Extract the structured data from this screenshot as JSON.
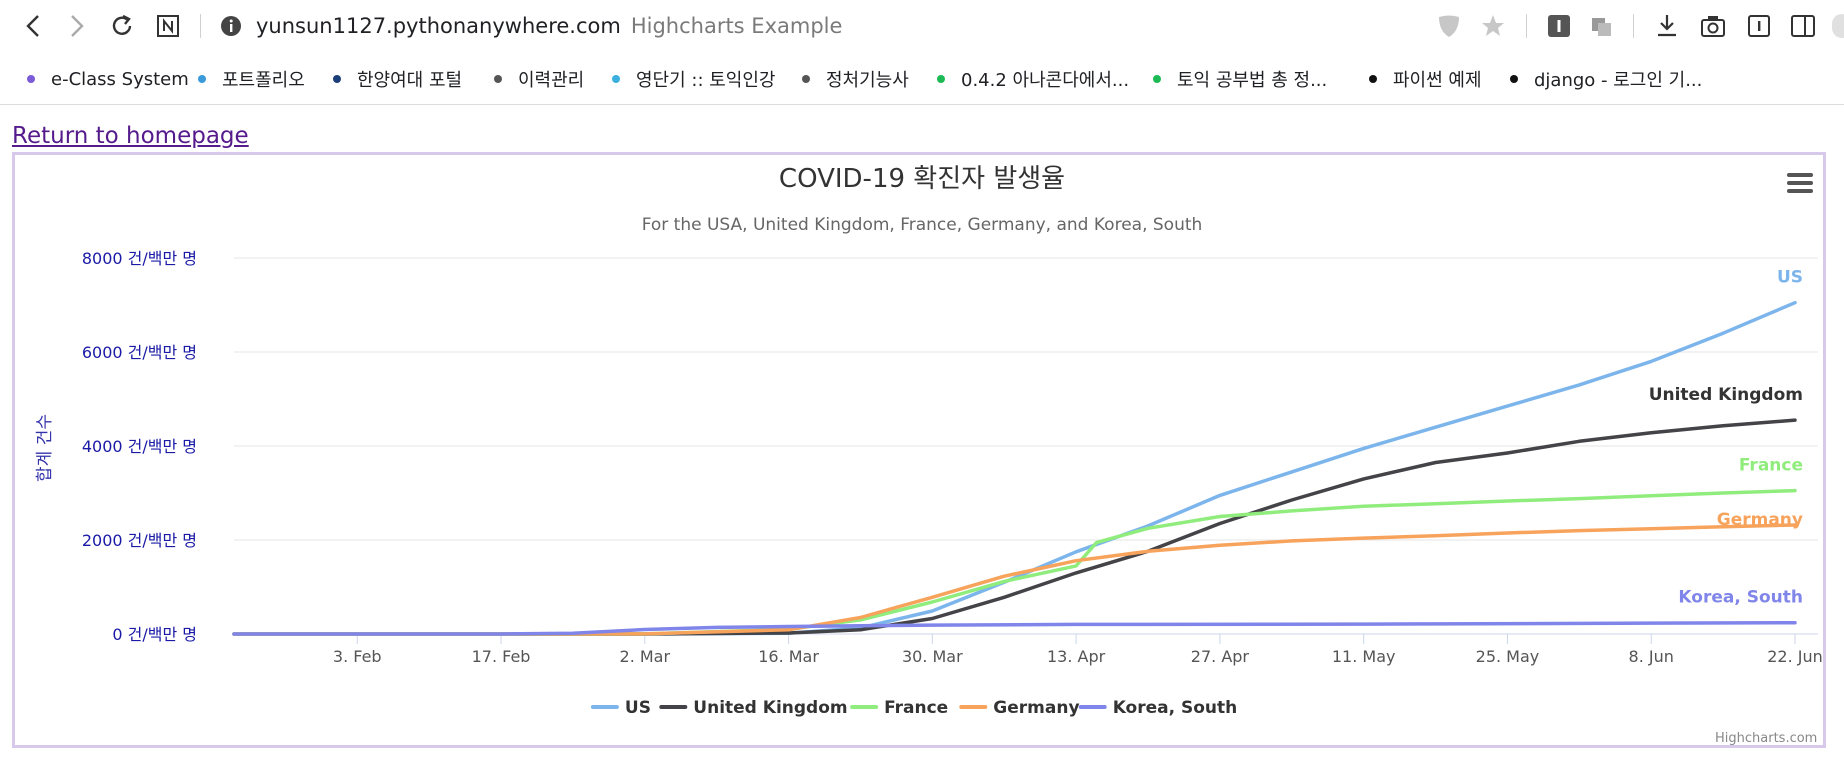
{
  "browser": {
    "url_host": "yunsun1127.pythonanywhere.com",
    "page_title": "Highcharts Example",
    "icons": [
      "back-icon",
      "forward-icon",
      "reload-icon",
      "extension-n-icon",
      "site-info-icon",
      "shield-icon",
      "star-icon",
      "extension-i-icon",
      "puzzle-icon",
      "download-icon",
      "camera-icon",
      "reader-icon",
      "sidebar-icon"
    ]
  },
  "bookmarks": [
    {
      "label": "e-Class System",
      "color": "#7b5bd6"
    },
    {
      "label": "포트폴리오",
      "color": "#3b9ad9"
    },
    {
      "label": "한양여대 포털",
      "color": "#1c3f7a"
    },
    {
      "label": "이력관리",
      "color": "#555555"
    },
    {
      "label": "영단기 :: 토익인강",
      "color": "#3ab0e0"
    },
    {
      "label": "정처기능사",
      "color": "#555555"
    },
    {
      "label": "0.4.2 아나콘다에서...",
      "color": "#1db954"
    },
    {
      "label": "토익 공부법 총 정...",
      "color": "#1db954"
    },
    {
      "label": "파이썬 예제",
      "color": "#111111"
    },
    {
      "label": "django - 로그인 기...",
      "color": "#111111"
    }
  ],
  "page": {
    "return_link": "Return to homepage",
    "credits": "Highcharts.com"
  },
  "chart_data": {
    "type": "line",
    "title": "COVID-19 확진자 발생율",
    "subtitle": "For the USA, United Kingdom, France, Germany, and Korea, South",
    "ylabel": "합계 건수",
    "ytick_suffix": " 건/백만 명",
    "yticks": [
      0,
      2000,
      4000,
      6000,
      8000
    ],
    "ylim": [
      0,
      8000
    ],
    "xlim": [
      "2020-01-22",
      "2020-06-22"
    ],
    "xticks": [
      {
        "date": "2020-02-03",
        "label": "3. Feb"
      },
      {
        "date": "2020-02-17",
        "label": "17. Feb"
      },
      {
        "date": "2020-03-02",
        "label": "2. Mar"
      },
      {
        "date": "2020-03-16",
        "label": "16. Mar"
      },
      {
        "date": "2020-03-30",
        "label": "30. Mar"
      },
      {
        "date": "2020-04-13",
        "label": "13. Apr"
      },
      {
        "date": "2020-04-27",
        "label": "27. Apr"
      },
      {
        "date": "2020-05-11",
        "label": "11. May"
      },
      {
        "date": "2020-05-25",
        "label": "25. May"
      },
      {
        "date": "2020-06-08",
        "label": "8. Jun"
      },
      {
        "date": "2020-06-22",
        "label": "22. Jun"
      }
    ],
    "legend": "bottom-center",
    "grid": true,
    "series": [
      {
        "name": "US",
        "color": "#7cb5ec",
        "points": [
          [
            "2020-01-22",
            0
          ],
          [
            "2020-02-17",
            0
          ],
          [
            "2020-03-02",
            1
          ],
          [
            "2020-03-16",
            14
          ],
          [
            "2020-03-23",
            130
          ],
          [
            "2020-03-30",
            490
          ],
          [
            "2020-04-06",
            1100
          ],
          [
            "2020-04-13",
            1750
          ],
          [
            "2020-04-20",
            2300
          ],
          [
            "2020-04-27",
            2950
          ],
          [
            "2020-05-04",
            3450
          ],
          [
            "2020-05-11",
            3950
          ],
          [
            "2020-05-18",
            4400
          ],
          [
            "2020-05-25",
            4850
          ],
          [
            "2020-06-01",
            5300
          ],
          [
            "2020-06-08",
            5800
          ],
          [
            "2020-06-15",
            6400
          ],
          [
            "2020-06-22",
            7050
          ]
        ]
      },
      {
        "name": "United Kingdom",
        "color": "#434348",
        "points": [
          [
            "2020-01-22",
            0
          ],
          [
            "2020-02-17",
            0
          ],
          [
            "2020-03-02",
            1
          ],
          [
            "2020-03-16",
            22
          ],
          [
            "2020-03-23",
            90
          ],
          [
            "2020-03-30",
            330
          ],
          [
            "2020-04-06",
            780
          ],
          [
            "2020-04-13",
            1300
          ],
          [
            "2020-04-20",
            1760
          ],
          [
            "2020-04-27",
            2350
          ],
          [
            "2020-05-04",
            2850
          ],
          [
            "2020-05-11",
            3300
          ],
          [
            "2020-05-18",
            3650
          ],
          [
            "2020-05-25",
            3850
          ],
          [
            "2020-06-01",
            4100
          ],
          [
            "2020-06-08",
            4280
          ],
          [
            "2020-06-15",
            4430
          ],
          [
            "2020-06-22",
            4550
          ]
        ]
      },
      {
        "name": "France",
        "color": "#90ed7d",
        "points": [
          [
            "2020-01-22",
            0
          ],
          [
            "2020-02-17",
            0
          ],
          [
            "2020-03-02",
            3
          ],
          [
            "2020-03-16",
            100
          ],
          [
            "2020-03-23",
            300
          ],
          [
            "2020-03-30",
            680
          ],
          [
            "2020-04-06",
            1120
          ],
          [
            "2020-04-13",
            1450
          ],
          [
            "2020-04-15",
            1950
          ],
          [
            "2020-04-20",
            2250
          ],
          [
            "2020-04-27",
            2500
          ],
          [
            "2020-05-04",
            2620
          ],
          [
            "2020-05-11",
            2720
          ],
          [
            "2020-05-18",
            2770
          ],
          [
            "2020-05-25",
            2830
          ],
          [
            "2020-06-01",
            2880
          ],
          [
            "2020-06-08",
            2940
          ],
          [
            "2020-06-15",
            3000
          ],
          [
            "2020-06-22",
            3050
          ]
        ]
      },
      {
        "name": "Germany",
        "color": "#f7a35c",
        "points": [
          [
            "2020-01-22",
            0
          ],
          [
            "2020-02-17",
            0
          ],
          [
            "2020-03-02",
            2
          ],
          [
            "2020-03-16",
            90
          ],
          [
            "2020-03-23",
            350
          ],
          [
            "2020-03-30",
            780
          ],
          [
            "2020-04-06",
            1230
          ],
          [
            "2020-04-13",
            1560
          ],
          [
            "2020-04-20",
            1760
          ],
          [
            "2020-04-27",
            1890
          ],
          [
            "2020-05-04",
            1980
          ],
          [
            "2020-05-11",
            2040
          ],
          [
            "2020-05-18",
            2090
          ],
          [
            "2020-05-25",
            2150
          ],
          [
            "2020-06-01",
            2200
          ],
          [
            "2020-06-08",
            2240
          ],
          [
            "2020-06-15",
            2280
          ],
          [
            "2020-06-22",
            2320
          ]
        ]
      },
      {
        "name": "Korea, South",
        "color": "#8085e9",
        "points": [
          [
            "2020-01-22",
            0
          ],
          [
            "2020-02-17",
            1
          ],
          [
            "2020-02-24",
            15
          ],
          [
            "2020-03-02",
            95
          ],
          [
            "2020-03-09",
            140
          ],
          [
            "2020-03-16",
            160
          ],
          [
            "2020-03-23",
            175
          ],
          [
            "2020-03-30",
            190
          ],
          [
            "2020-04-13",
            205
          ],
          [
            "2020-05-11",
            210
          ],
          [
            "2020-06-22",
            240
          ]
        ]
      }
    ]
  }
}
